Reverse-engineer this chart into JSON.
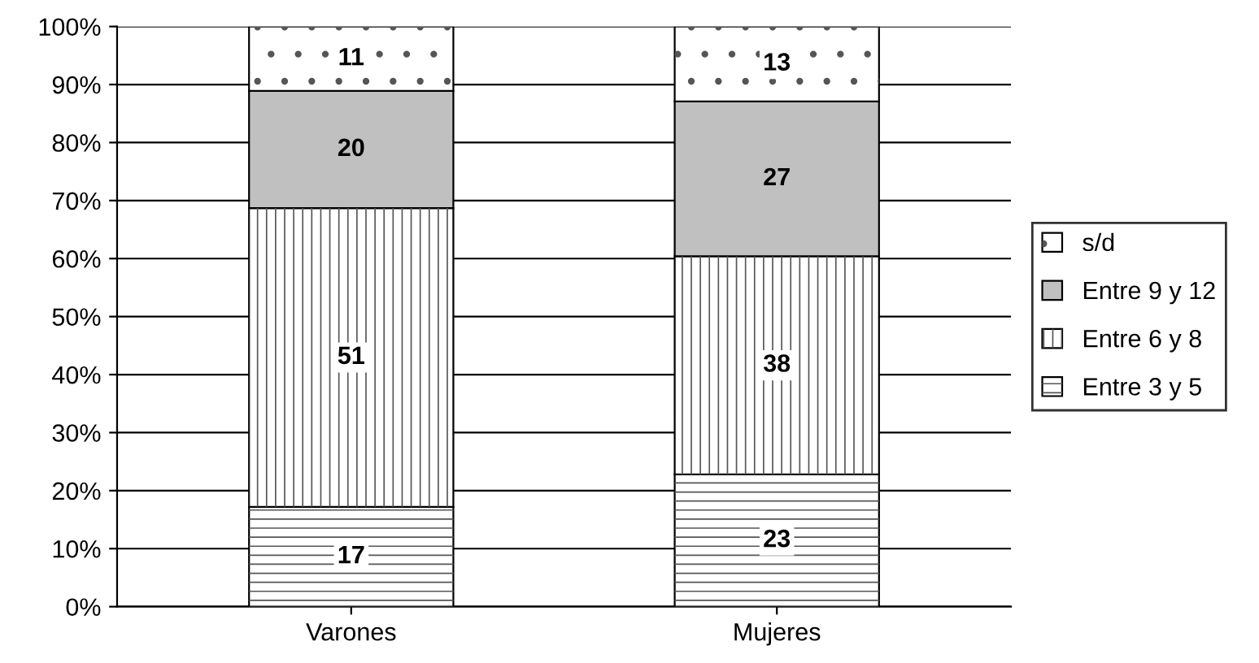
{
  "chart_data": {
    "type": "bar",
    "stacked": true,
    "categories": [
      "Varones",
      "Mujeres"
    ],
    "series": [
      {
        "name": "Entre 3 y 5",
        "color": "#ffffff",
        "values": [
          17.2,
          22.8
        ],
        "value_labels": [
          "17",
          "23"
        ]
      },
      {
        "name": "Entre 6 y 8",
        "color": "#ffffff",
        "values": [
          51.5,
          37.6
        ],
        "value_labels": [
          "51",
          "38"
        ]
      },
      {
        "name": "Entre 9 y 12",
        "color": "#c0c0c0",
        "values": [
          20.2,
          26.7
        ],
        "value_labels": [
          "20",
          "27"
        ]
      },
      {
        "name": "s/d",
        "color": "#ffffff",
        "values": [
          11.1,
          12.9
        ],
        "value_labels": [
          "11",
          "13"
        ]
      }
    ],
    "ylim": [
      0,
      100
    ],
    "yticks": [
      {
        "value": 0,
        "label": "0%"
      },
      {
        "value": 10,
        "label": "10%"
      },
      {
        "value": 20,
        "label": "20%"
      },
      {
        "value": 30,
        "label": "30%"
      },
      {
        "value": 40,
        "label": "40%"
      },
      {
        "value": 50,
        "label": "50%"
      },
      {
        "value": 60,
        "label": "60%"
      },
      {
        "value": 70,
        "label": "70%"
      },
      {
        "value": 80,
        "label": "80%"
      },
      {
        "value": 90,
        "label": "90%"
      },
      {
        "value": 100,
        "label": "100%"
      }
    ],
    "grid": "y",
    "legend": "right"
  }
}
